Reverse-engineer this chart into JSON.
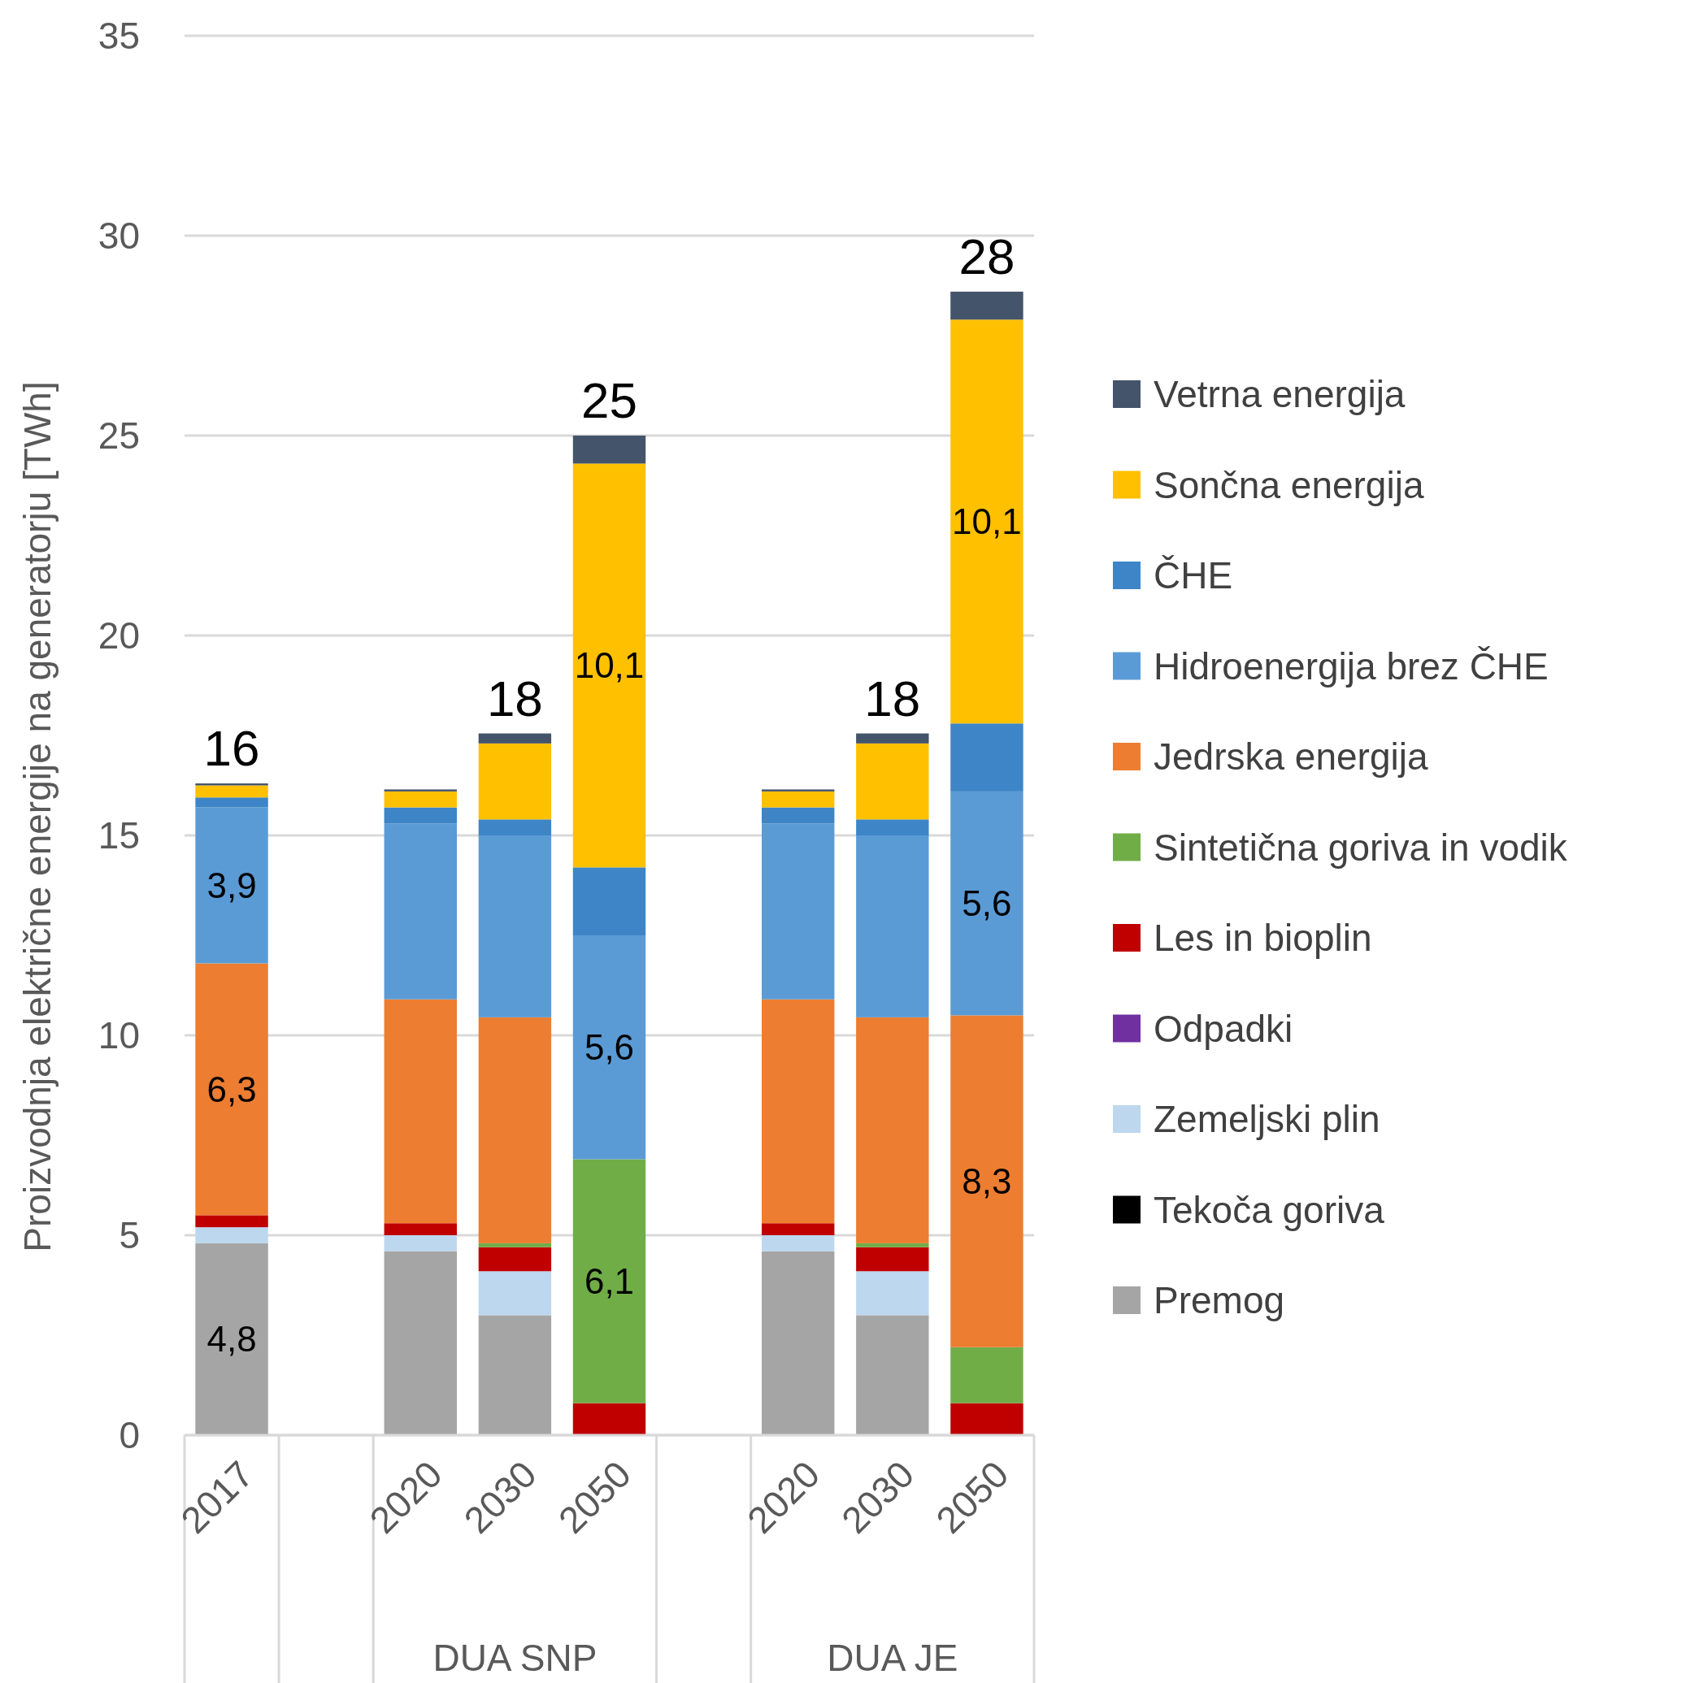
{
  "chart_data": {
    "type": "bar",
    "stacked": true,
    "ylabel": "Proizvodnja električne energije na generatorju [TWh]",
    "categories": [
      "2017",
      null,
      "2020",
      "2030",
      "2050",
      null,
      "2020",
      "2030",
      "2050"
    ],
    "annotations": [
      "DUA SNP",
      "DUA JE"
    ],
    "series": [
      {
        "name": "Premog",
        "color": "#a5a5a5",
        "values": [
          4.8,
          null,
          4.6,
          3.0,
          0,
          null,
          4.6,
          3.0,
          0
        ],
        "value_labels": [
          "4,8",
          null,
          null,
          null,
          null,
          null,
          null,
          null,
          null
        ]
      },
      {
        "name": "Tekoča goriva",
        "color": "#000000",
        "values": [
          0,
          null,
          0,
          0,
          0,
          null,
          0,
          0,
          0
        ]
      },
      {
        "name": "Zemeljski plin",
        "color": "#bdd7ee",
        "values": [
          0.4,
          null,
          0.4,
          1.1,
          0,
          null,
          0.4,
          1.1,
          0
        ]
      },
      {
        "name": "Odpadki",
        "color": "#7030a0",
        "values": [
          0,
          null,
          0,
          0,
          0,
          null,
          0,
          0,
          0
        ]
      },
      {
        "name": "Les in bioplin",
        "color": "#c00000",
        "values": [
          0.3,
          null,
          0.3,
          0.6,
          0.8,
          null,
          0.3,
          0.6,
          0.8
        ]
      },
      {
        "name": "Sintetična goriva in vodik",
        "color": "#70ad47",
        "values": [
          0,
          null,
          0,
          0.1,
          6.1,
          null,
          0,
          0.1,
          1.4
        ],
        "value_labels": [
          null,
          null,
          null,
          null,
          "6,1",
          null,
          null,
          null,
          null
        ]
      },
      {
        "name": "Jedrska energija",
        "color": "#ed7d31",
        "values": [
          6.3,
          null,
          5.6,
          5.65,
          0,
          null,
          5.6,
          5.65,
          8.3
        ],
        "value_labels": [
          "6,3",
          null,
          null,
          null,
          null,
          null,
          null,
          null,
          "8,3"
        ]
      },
      {
        "name": "Hidroenergija brez ČHE",
        "color": "#5b9bd5",
        "values": [
          3.9,
          null,
          4.4,
          4.55,
          5.6,
          null,
          4.4,
          4.55,
          5.6
        ],
        "value_labels": [
          "3,9",
          null,
          null,
          null,
          "5,6",
          null,
          null,
          null,
          "5,6"
        ]
      },
      {
        "name": "ČHE",
        "color": "#3d85c6",
        "values": [
          0.25,
          null,
          0.4,
          0.4,
          1.7,
          null,
          0.4,
          0.4,
          1.7
        ]
      },
      {
        "name": "Sončna energija",
        "color": "#ffc000",
        "values": [
          0.3,
          null,
          0.4,
          1.9,
          10.1,
          null,
          0.4,
          1.9,
          10.1
        ],
        "value_labels": [
          null,
          null,
          null,
          null,
          "10,1",
          null,
          null,
          null,
          "10,1"
        ]
      },
      {
        "name": "Vetrna energija",
        "color": "#44546a",
        "values": [
          0.05,
          null,
          0.05,
          0.25,
          0.7,
          null,
          0.05,
          0.25,
          0.7
        ]
      }
    ],
    "totals": [
      "16",
      null,
      null,
      "18",
      "25",
      null,
      null,
      "18",
      "28"
    ],
    "ylim": [
      0,
      35
    ],
    "yticks": [
      0,
      5,
      10,
      15,
      20,
      25,
      30,
      35
    ],
    "grid": "y",
    "legend": "right"
  }
}
